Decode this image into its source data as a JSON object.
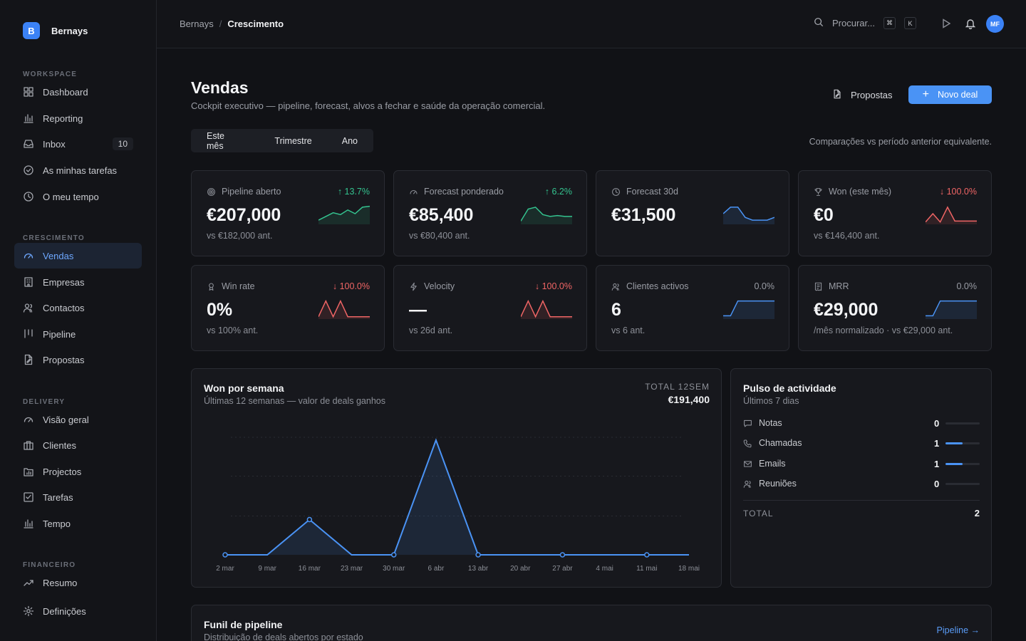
{
  "brand": {
    "logo_letter": "B",
    "name": "Bernays"
  },
  "sidebar": {
    "sections": [
      {
        "label": "WORKSPACE",
        "items": [
          {
            "label": "Dashboard",
            "icon": "grid-icon"
          },
          {
            "label": "Reporting",
            "icon": "bar-chart-icon"
          },
          {
            "label": "Inbox",
            "icon": "inbox-icon",
            "badge": "10"
          },
          {
            "label": "As minhas tarefas",
            "icon": "check-circle-icon"
          },
          {
            "label": "O meu tempo",
            "icon": "clock-icon"
          }
        ]
      },
      {
        "label": "CRESCIMENTO",
        "items": [
          {
            "label": "Vendas",
            "icon": "gauge-icon",
            "active": true
          },
          {
            "label": "Empresas",
            "icon": "building-icon"
          },
          {
            "label": "Contactos",
            "icon": "users-icon"
          },
          {
            "label": "Pipeline",
            "icon": "columns-icon"
          },
          {
            "label": "Propostas",
            "icon": "file-edit-icon"
          }
        ]
      },
      {
        "label": "DELIVERY",
        "items": [
          {
            "label": "Visão geral",
            "icon": "gauge-icon"
          },
          {
            "label": "Clientes",
            "icon": "briefcase-icon"
          },
          {
            "label": "Projectos",
            "icon": "folder-chart-icon"
          },
          {
            "label": "Tarefas",
            "icon": "checkbox-icon"
          },
          {
            "label": "Tempo",
            "icon": "bar-chart-icon"
          }
        ]
      },
      {
        "label": "FINANCEIRO",
        "items": [
          {
            "label": "Resumo",
            "icon": "trend-up-icon"
          },
          {
            "label": "Definições",
            "icon": "gear-icon"
          }
        ]
      }
    ]
  },
  "topbar": {
    "breadcrumb_root": "Bernays",
    "breadcrumb_sep": "/",
    "breadcrumb_current": "Crescimento",
    "search_placeholder": "Procurar...",
    "kbd_1": "⌘",
    "kbd_2": "K",
    "avatar_initials": "MF"
  },
  "page": {
    "title": "Vendas",
    "subtitle": "Cockpit executivo — pipeline, forecast, alvos a fechar e saúde da operação comercial.",
    "btn_proposals": "Propostas",
    "btn_new_plus": "+",
    "btn_new": "Novo deal",
    "period_tabs": [
      "Este mês",
      "Trimestre",
      "Ano"
    ],
    "compare_note": "Comparações vs período anterior equivalente."
  },
  "kpis": [
    {
      "label": "Pipeline aberto",
      "icon": "target-icon",
      "delta": "↑ 13.7%",
      "trend": "up",
      "value": "€207,000",
      "foot": "vs €182,000 ant.",
      "spark_color": "#34c38f",
      "spark": [
        0.15,
        0.35,
        0.55,
        0.45,
        0.7,
        0.5,
        0.85,
        0.9
      ]
    },
    {
      "label": "Forecast ponderado",
      "icon": "gauge-icon",
      "delta": "↑ 6.2%",
      "trend": "up",
      "value": "€85,400",
      "foot": "vs €80,400 ant.",
      "spark_color": "#34c38f",
      "spark": [
        0.1,
        0.75,
        0.85,
        0.45,
        0.35,
        0.4,
        0.35,
        0.35
      ]
    },
    {
      "label": "Forecast 30d",
      "icon": "clock-icon",
      "delta": "",
      "trend": "flat",
      "value": "€31,500",
      "foot": "",
      "spark_color": "#4a93f5",
      "spark": [
        0.5,
        0.85,
        0.85,
        0.3,
        0.15,
        0.15,
        0.15,
        0.3
      ]
    },
    {
      "label": "Won (este mês)",
      "icon": "trophy-icon",
      "delta": "↓ 100.0%",
      "trend": "down",
      "value": "€0",
      "foot": "vs €146,400 ant.",
      "spark_color": "#f06565",
      "spark": [
        0.05,
        0.5,
        0.05,
        0.85,
        0.1,
        0.1,
        0.1,
        0.1
      ]
    },
    {
      "label": "Win rate",
      "icon": "award-icon",
      "delta": "↓ 100.0%",
      "trend": "down",
      "value": "0%",
      "foot": "vs 100% ant.",
      "spark_color": "#f06565",
      "spark": [
        0.05,
        0.9,
        0.05,
        0.9,
        0.05,
        0.05,
        0.05,
        0.05
      ]
    },
    {
      "label": "Velocity",
      "icon": "bolt-icon",
      "delta": "↓ 100.0%",
      "trend": "down",
      "value": "—",
      "foot": "vs 26d ant.",
      "spark_color": "#f06565",
      "spark": [
        0.05,
        0.9,
        0.05,
        0.9,
        0.05,
        0.05,
        0.05,
        0.05
      ]
    },
    {
      "label": "Clientes activos",
      "icon": "users-icon",
      "delta": "0.0%",
      "trend": "flat",
      "value": "6",
      "foot": "vs 6 ant.",
      "spark_color": "#4a93f5",
      "spark": [
        0.1,
        0.1,
        0.9,
        0.9,
        0.9,
        0.9,
        0.9,
        0.9
      ]
    },
    {
      "label": "MRR",
      "icon": "receipt-icon",
      "delta": "0.0%",
      "trend": "flat",
      "value": "€29,000",
      "foot": "/mês normalizado · vs €29,000 ant.",
      "spark_color": "#4a93f5",
      "spark": [
        0.1,
        0.1,
        0.9,
        0.9,
        0.9,
        0.9,
        0.9,
        0.9
      ]
    }
  ],
  "won_chart": {
    "title": "Won por semana",
    "subtitle": "Últimas 12 semanas — valor de deals ganhos",
    "total_label": "TOTAL 12SEM",
    "total_value": "€191,400"
  },
  "chart_data": {
    "type": "area",
    "title": "Won por semana",
    "categories": [
      "2 mar",
      "9 mar",
      "16 mar",
      "23 mar",
      "30 mar",
      "6 abr",
      "13 abr",
      "20 abr",
      "27 abr",
      "4 mai",
      "11 mai",
      "18 mai"
    ],
    "values": [
      0,
      0,
      45000,
      0,
      0,
      146400,
      0,
      0,
      0,
      0,
      0,
      0
    ],
    "markers": [
      0,
      2,
      4,
      6,
      8,
      10
    ],
    "ylim": [
      0,
      150000
    ],
    "grid": true,
    "color": "#4a93f5"
  },
  "pulse": {
    "title": "Pulso de actividade",
    "subtitle": "Últimos 7 dias",
    "rows": [
      {
        "label": "Notas",
        "icon": "message-icon",
        "count": "0",
        "fill": 0
      },
      {
        "label": "Chamadas",
        "icon": "phone-icon",
        "count": "1",
        "fill": 0.5
      },
      {
        "label": "Emails",
        "icon": "mail-icon",
        "count": "1",
        "fill": 0.5
      },
      {
        "label": "Reuniões",
        "icon": "users-icon",
        "count": "0",
        "fill": 0
      }
    ],
    "total_label": "TOTAL",
    "total_value": "2"
  },
  "funnel": {
    "title": "Funil de pipeline",
    "subtitle": "Distribuição de deals abertos por estado",
    "link": "Pipeline →"
  }
}
